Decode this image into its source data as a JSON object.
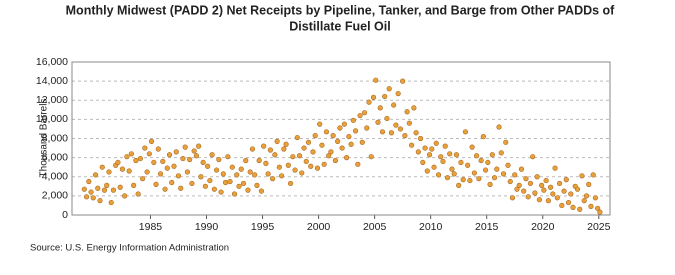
{
  "chart_data": {
    "type": "scatter",
    "title": [
      "Monthly Midwest (PADD 2) Net Receipts by Pipeline, Tanker, and Barge from Other PADDs of",
      "Distillate Fuel Oil"
    ],
    "y_label": "Thousand Barrels",
    "source": "Source: U.S. Energy Information Administration",
    "xlim": [
      1978,
      2026
    ],
    "xticks": [
      1985,
      1990,
      1995,
      2000,
      2005,
      2010,
      2015,
      2020,
      2025
    ],
    "ylim": [
      0,
      16000
    ],
    "yticks": [
      0,
      {
        "value": 2000,
        "label": "2,000"
      },
      {
        "value": 4000,
        "label": "4,000"
      },
      {
        "value": 6000,
        "label": "6,000"
      },
      {
        "value": 8000,
        "label": "8,000"
      },
      {
        "value": 10000,
        "label": "10,000"
      },
      {
        "value": 12000,
        "label": "12,000"
      },
      {
        "value": 14000,
        "label": "14,000"
      },
      {
        "value": 16000,
        "label": "16,000"
      }
    ],
    "grid": true,
    "color": "#e8a13a",
    "x": [
      1979.1,
      1979.3,
      1979.5,
      1979.7,
      1979.9,
      1980.1,
      1980.3,
      1980.5,
      1980.7,
      1980.9,
      1981.1,
      1981.3,
      1981.5,
      1981.7,
      1981.9,
      1982.1,
      1982.3,
      1982.5,
      1982.7,
      1982.9,
      1983.1,
      1983.3,
      1983.5,
      1983.7,
      1983.9,
      1984.1,
      1984.3,
      1984.5,
      1984.7,
      1984.9,
      1985.1,
      1985.3,
      1985.5,
      1985.7,
      1985.9,
      1986.1,
      1986.3,
      1986.5,
      1986.7,
      1986.9,
      1987.1,
      1987.3,
      1987.5,
      1987.7,
      1987.9,
      1988.1,
      1988.3,
      1988.5,
      1988.7,
      1988.9,
      1989.1,
      1989.3,
      1989.5,
      1989.7,
      1989.9,
      1990.1,
      1990.3,
      1990.5,
      1990.7,
      1990.9,
      1991.1,
      1991.3,
      1991.5,
      1991.7,
      1991.9,
      1992.1,
      1992.3,
      1992.5,
      1992.7,
      1992.9,
      1993.1,
      1993.3,
      1993.5,
      1993.7,
      1993.9,
      1994.1,
      1994.3,
      1994.5,
      1994.7,
      1994.9,
      1995.1,
      1995.3,
      1995.5,
      1995.7,
      1995.9,
      1996.1,
      1996.3,
      1996.5,
      1996.7,
      1996.9,
      1997.1,
      1997.3,
      1997.5,
      1997.7,
      1997.9,
      1998.1,
      1998.3,
      1998.5,
      1998.7,
      1998.9,
      1999.1,
      1999.3,
      1999.5,
      1999.7,
      1999.9,
      2000.1,
      2000.3,
      2000.5,
      2000.7,
      2000.9,
      2001.1,
      2001.3,
      2001.5,
      2001.7,
      2001.9,
      2002.1,
      2002.3,
      2002.5,
      2002.7,
      2002.9,
      2003.1,
      2003.3,
      2003.5,
      2003.7,
      2003.9,
      2004.1,
      2004.3,
      2004.5,
      2004.7,
      2004.9,
      2005.1,
      2005.3,
      2005.5,
      2005.7,
      2005.9,
      2006.1,
      2006.3,
      2006.5,
      2006.7,
      2006.9,
      2007.1,
      2007.3,
      2007.5,
      2007.7,
      2007.9,
      2008.1,
      2008.3,
      2008.5,
      2008.7,
      2008.9,
      2009.1,
      2009.3,
      2009.5,
      2009.7,
      2009.9,
      2010.1,
      2010.3,
      2010.5,
      2010.7,
      2010.9,
      2011.1,
      2011.3,
      2011.5,
      2011.7,
      2011.9,
      2012.1,
      2012.3,
      2012.5,
      2012.7,
      2012.9,
      2013.1,
      2013.3,
      2013.5,
      2013.7,
      2013.9,
      2014.1,
      2014.3,
      2014.5,
      2014.7,
      2014.9,
      2015.1,
      2015.3,
      2015.5,
      2015.7,
      2015.9,
      2016.1,
      2016.3,
      2016.5,
      2016.7,
      2016.9,
      2017.1,
      2017.3,
      2017.5,
      2017.7,
      2017.9,
      2018.1,
      2018.3,
      2018.5,
      2018.7,
      2018.9,
      2019.1,
      2019.3,
      2019.5,
      2019.7,
      2019.9,
      2020.1,
      2020.3,
      2020.5,
      2020.7,
      2020.9,
      2021.1,
      2021.3,
      2021.5,
      2021.7,
      2021.9,
      2022.1,
      2022.3,
      2022.5,
      2022.7,
      2022.9,
      2023.1,
      2023.3,
      2023.5,
      2023.7,
      2023.9,
      2024.1,
      2024.3,
      2024.5,
      2024.7,
      2024.9,
      2025.1
    ],
    "values": [
      2700,
      1900,
      3500,
      2400,
      1800,
      4200,
      2800,
      1500,
      5000,
      2600,
      3100,
      4500,
      1300,
      2600,
      5200,
      5500,
      2900,
      4800,
      2000,
      6100,
      4600,
      6400,
      3100,
      5700,
      2200,
      5900,
      3800,
      7000,
      4500,
      6400,
      7700,
      5500,
      3200,
      6900,
      4300,
      5600,
      2700,
      4900,
      6300,
      3400,
      5100,
      6600,
      4100,
      2800,
      5900,
      7100,
      4500,
      5800,
      3300,
      6700,
      6200,
      7200,
      4000,
      5500,
      3000,
      5100,
      3600,
      6300,
      2700,
      4700,
      5800,
      2400,
      4300,
      3400,
      6100,
      3500,
      5000,
      2200,
      4200,
      3000,
      4800,
      3300,
      5700,
      2600,
      4500,
      6900,
      4200,
      3100,
      5700,
      2500,
      7200,
      5400,
      4300,
      6800,
      3800,
      6300,
      7700,
      5000,
      4100,
      6900,
      7400,
      5200,
      3300,
      6100,
      4700,
      8100,
      6200,
      4400,
      7000,
      5600,
      7600,
      5100,
      6600,
      8300,
      4900,
      9500,
      7300,
      5300,
      8700,
      6200,
      6600,
      8300,
      5700,
      7700,
      9100,
      7000,
      9500,
      6000,
      8200,
      7400,
      9900,
      8800,
      5300,
      10400,
      7600,
      10700,
      9100,
      11800,
      6100,
      12300,
      14100,
      9700,
      11200,
      8700,
      12400,
      10100,
      13200,
      8600,
      11500,
      9400,
      12700,
      9000,
      14000,
      8300,
      10800,
      9600,
      7300,
      11200,
      8600,
      6600,
      8000,
      5500,
      7000,
      4600,
      6300,
      6900,
      5000,
      7500,
      4200,
      6100,
      5600,
      7200,
      3900,
      6400,
      4800,
      4300,
      6300,
      3100,
      5500,
      3700,
      8700,
      5200,
      3600,
      7100,
      4400,
      6200,
      3800,
      5700,
      8200,
      4700,
      5500,
      3200,
      6300,
      3900,
      4800,
      9200,
      6500,
      4300,
      7600,
      5200,
      3500,
      1800,
      4200,
      2700,
      3100,
      4800,
      2500,
      3800,
      1900,
      3300,
      6100,
      2300,
      4000,
      1600,
      3100,
      2600,
      3600,
      1500,
      2900,
      2200,
      4900,
      1800,
      3300,
      1000,
      2500,
      3700,
      1300,
      2200,
      800,
      3000,
      2700,
      600,
      4100,
      1500,
      2000,
      3200,
      900,
      4200,
      1800,
      700,
      300
    ]
  }
}
